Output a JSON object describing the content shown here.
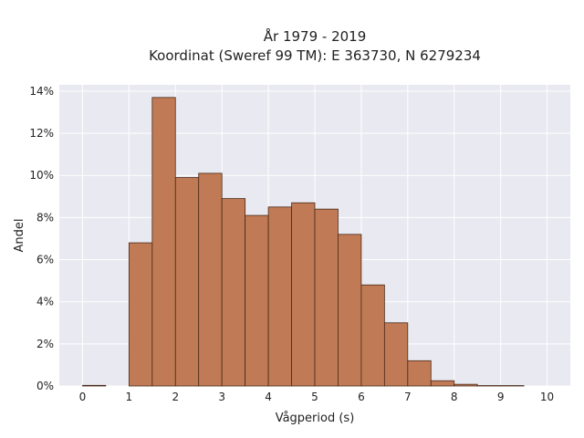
{
  "chart_data": {
    "type": "bar",
    "title_line1": "År 1979 - 2019",
    "title_line2": "Koordinat (Sweref 99 TM): E 363730, N 6279234",
    "xlabel": "Vågperiod (s)",
    "ylabel": "Andel",
    "xlim": [
      -0.5,
      10.5
    ],
    "ylim": [
      0,
      0.143
    ],
    "x_ticks": [
      0,
      1,
      2,
      3,
      4,
      5,
      6,
      7,
      8,
      9,
      10
    ],
    "x_tick_labels": [
      "0",
      "1",
      "2",
      "3",
      "4",
      "5",
      "6",
      "7",
      "8",
      "9",
      "10"
    ],
    "y_ticks": [
      0,
      0.02,
      0.04,
      0.06,
      0.08,
      0.1,
      0.12,
      0.14
    ],
    "y_tick_labels": [
      "0%",
      "2%",
      "4%",
      "6%",
      "8%",
      "10%",
      "12%",
      "14%"
    ],
    "bin_width": 0.5,
    "bins": [
      {
        "x0": 0.0,
        "value": 0.0003
      },
      {
        "x0": 0.5,
        "value": 0.0
      },
      {
        "x0": 1.0,
        "value": 0.068
      },
      {
        "x0": 1.5,
        "value": 0.137
      },
      {
        "x0": 2.0,
        "value": 0.099
      },
      {
        "x0": 2.5,
        "value": 0.101
      },
      {
        "x0": 3.0,
        "value": 0.089
      },
      {
        "x0": 3.5,
        "value": 0.081
      },
      {
        "x0": 4.0,
        "value": 0.085
      },
      {
        "x0": 4.5,
        "value": 0.087
      },
      {
        "x0": 5.0,
        "value": 0.084
      },
      {
        "x0": 5.5,
        "value": 0.072
      },
      {
        "x0": 6.0,
        "value": 0.048
      },
      {
        "x0": 6.5,
        "value": 0.03
      },
      {
        "x0": 7.0,
        "value": 0.012
      },
      {
        "x0": 7.5,
        "value": 0.0025
      },
      {
        "x0": 8.0,
        "value": 0.0008
      },
      {
        "x0": 8.5,
        "value": 0.0002
      },
      {
        "x0": 9.0,
        "value": 0.0002
      }
    ],
    "grid": true,
    "colors": {
      "bar_fill": "#c07a55",
      "bar_stroke": "#4a2a18",
      "plot_bg": "#e9e9f1",
      "grid": "#ffffff"
    }
  }
}
